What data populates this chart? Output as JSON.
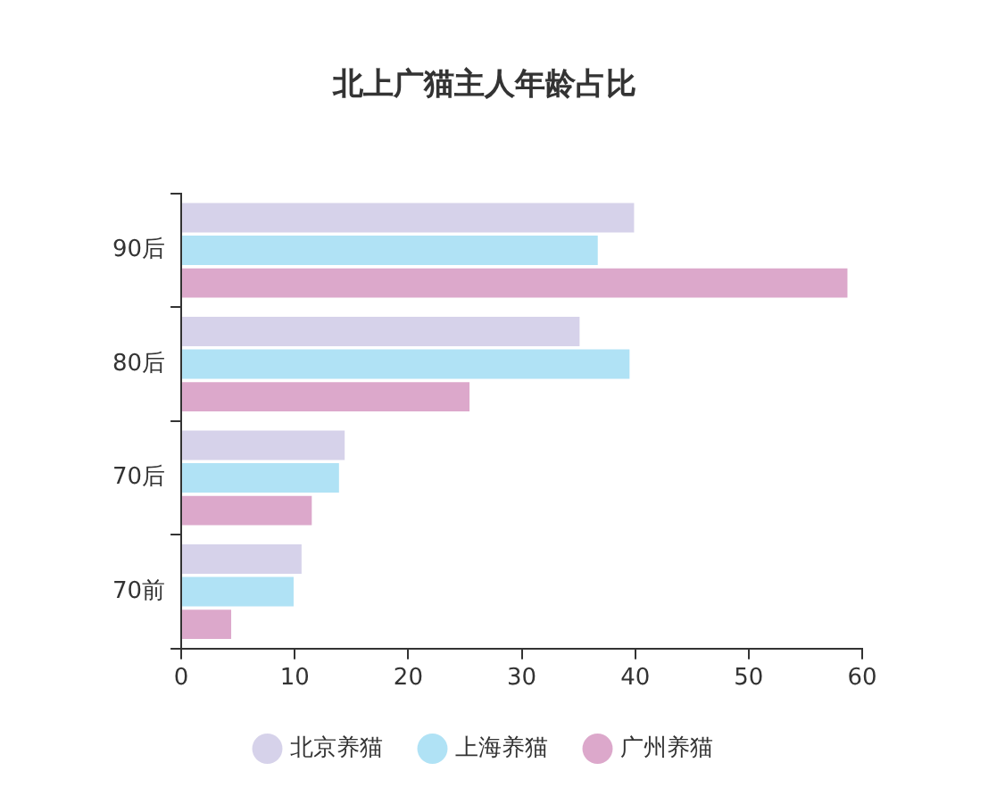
{
  "chart_data": {
    "type": "bar",
    "orientation": "horizontal",
    "title": "北上广猫主人年龄占比",
    "categories": [
      "90后",
      "80后",
      "70后",
      "70前"
    ],
    "series": [
      {
        "name": "北京养猫",
        "color": "#d6d2ea",
        "values": [
          39.9,
          35.1,
          14.4,
          10.6
        ]
      },
      {
        "name": "上海养猫",
        "color": "#b0e2f5",
        "values": [
          36.7,
          39.5,
          13.9,
          9.9
        ]
      },
      {
        "name": "广州养猫",
        "color": "#dca8cb",
        "values": [
          58.7,
          25.4,
          11.5,
          4.4
        ]
      }
    ],
    "xlim": [
      0,
      60
    ],
    "xticks": [
      0,
      10,
      20,
      30,
      40,
      50,
      60
    ],
    "grid": false,
    "legend": "bottom"
  }
}
